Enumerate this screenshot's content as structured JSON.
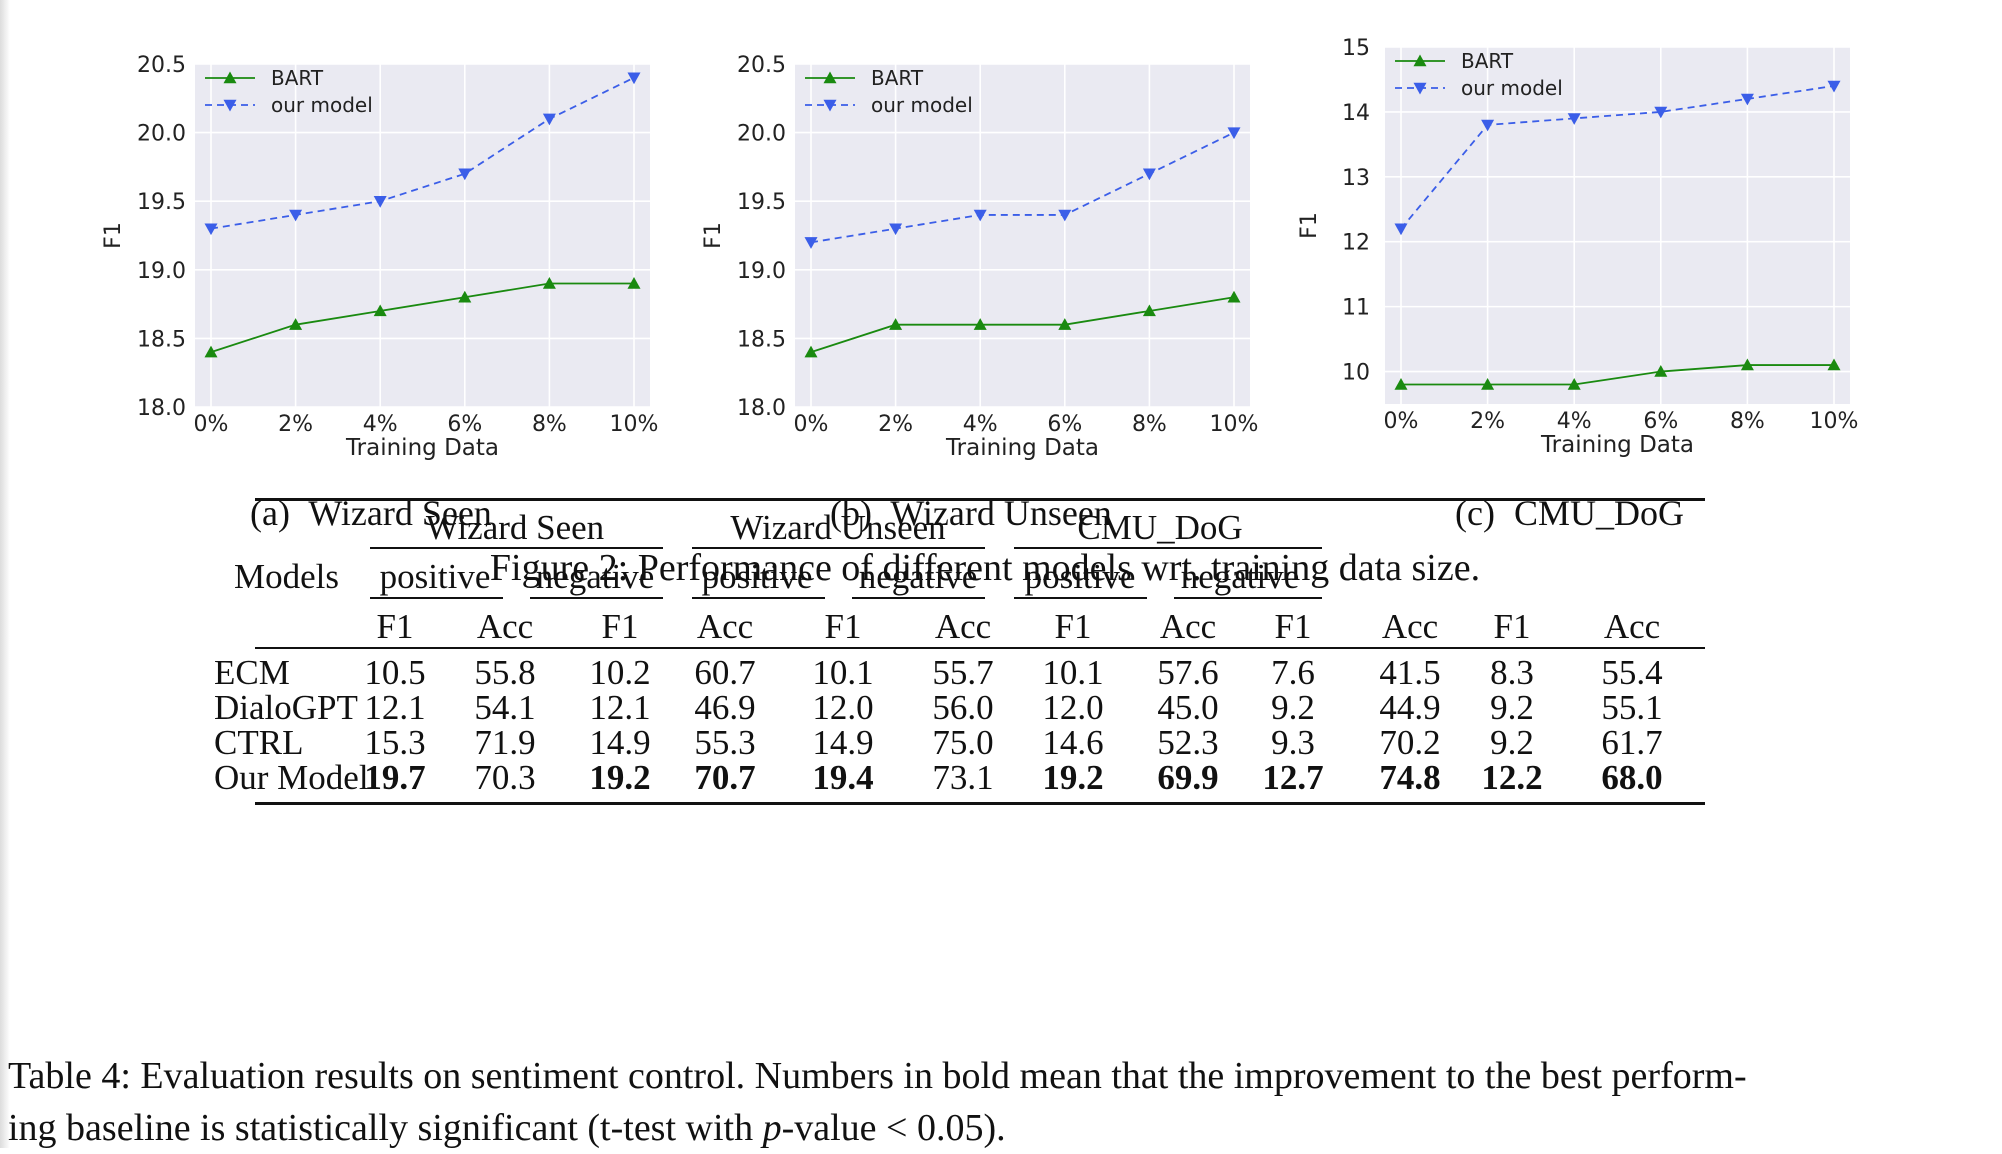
{
  "chart_data": [
    {
      "type": "line",
      "id": "a",
      "x": [
        "0%",
        "2%",
        "4%",
        "6%",
        "8%",
        "10%"
      ],
      "xlabel": "Training Data",
      "ylabel": "F1",
      "ylim": [
        18.0,
        20.5
      ],
      "yticks": [
        "18.0",
        "18.5",
        "19.0",
        "19.5",
        "20.0",
        "20.5"
      ],
      "grid": true,
      "legend": "top-left",
      "series": [
        {
          "name": "BART",
          "values": [
            18.4,
            18.6,
            18.7,
            18.8,
            18.9,
            18.9
          ],
          "color": "#1a8a10",
          "marker": "triangle-up",
          "dash": false
        },
        {
          "name": "our model",
          "values": [
            19.3,
            19.4,
            19.5,
            19.7,
            20.1,
            20.4
          ],
          "color": "#3b5ee8",
          "marker": "triangle-down",
          "dash": true
        }
      ]
    },
    {
      "type": "line",
      "id": "b",
      "x": [
        "0%",
        "2%",
        "4%",
        "6%",
        "8%",
        "10%"
      ],
      "xlabel": "Training Data",
      "ylabel": "F1",
      "ylim": [
        18.0,
        20.5
      ],
      "yticks": [
        "18.0",
        "18.5",
        "19.0",
        "19.5",
        "20.0",
        "20.5"
      ],
      "grid": true,
      "legend": "top-left",
      "series": [
        {
          "name": "BART",
          "values": [
            18.4,
            18.6,
            18.6,
            18.6,
            18.7,
            18.8
          ],
          "color": "#1a8a10",
          "marker": "triangle-up",
          "dash": false
        },
        {
          "name": "our model",
          "values": [
            19.2,
            19.3,
            19.4,
            19.4,
            19.7,
            20.0
          ],
          "color": "#3b5ee8",
          "marker": "triangle-down",
          "dash": true
        }
      ]
    },
    {
      "type": "line",
      "id": "c",
      "x": [
        "0%",
        "2%",
        "4%",
        "6%",
        "8%",
        "10%"
      ],
      "xlabel": "Training Data",
      "ylabel": "F1",
      "ylim": [
        9.5,
        15
      ],
      "yticks": [
        "10",
        "11",
        "12",
        "13",
        "14",
        "15"
      ],
      "ytick_values": [
        10,
        11,
        12,
        13,
        14,
        15
      ],
      "grid": true,
      "legend": "top-left",
      "series": [
        {
          "name": "BART",
          "values": [
            9.8,
            9.8,
            9.8,
            10.0,
            10.1,
            10.1
          ],
          "color": "#1a8a10",
          "marker": "triangle-up",
          "dash": false
        },
        {
          "name": "our model",
          "values": [
            12.2,
            13.8,
            13.9,
            14.0,
            14.2,
            14.4
          ],
          "color": "#3b5ee8",
          "marker": "triangle-down",
          "dash": true
        }
      ]
    }
  ],
  "subcaptions": [
    {
      "label": "(a)",
      "text": "Wizard Seen"
    },
    {
      "label": "(b)",
      "text": "Wizard Unseen"
    },
    {
      "label": "(c)",
      "text": "CMU_DoG"
    }
  ],
  "figure_caption": "Figure 2: Performance of different models wrt. training data size.",
  "table": {
    "models_header": "Models",
    "groups": [
      "Wizard Seen",
      "Wizard Unseen",
      "CMU_DoG"
    ],
    "polarities": [
      "positive",
      "negative"
    ],
    "metrics": [
      "F1",
      "Acc"
    ],
    "rows": [
      {
        "model": "ECM",
        "cells": [
          {
            "v": "10.5",
            "b": false
          },
          {
            "v": "55.8",
            "b": false
          },
          {
            "v": "10.2",
            "b": false
          },
          {
            "v": "60.7",
            "b": false
          },
          {
            "v": "10.1",
            "b": false
          },
          {
            "v": "55.7",
            "b": false
          },
          {
            "v": "10.1",
            "b": false
          },
          {
            "v": "57.6",
            "b": false
          },
          {
            "v": "7.6",
            "b": false
          },
          {
            "v": "41.5",
            "b": false
          },
          {
            "v": "8.3",
            "b": false
          },
          {
            "v": "55.4",
            "b": false
          }
        ]
      },
      {
        "model": "DialoGPT",
        "cells": [
          {
            "v": "12.1",
            "b": false
          },
          {
            "v": "54.1",
            "b": false
          },
          {
            "v": "12.1",
            "b": false
          },
          {
            "v": "46.9",
            "b": false
          },
          {
            "v": "12.0",
            "b": false
          },
          {
            "v": "56.0",
            "b": false
          },
          {
            "v": "12.0",
            "b": false
          },
          {
            "v": "45.0",
            "b": false
          },
          {
            "v": "9.2",
            "b": false
          },
          {
            "v": "44.9",
            "b": false
          },
          {
            "v": "9.2",
            "b": false
          },
          {
            "v": "55.1",
            "b": false
          }
        ]
      },
      {
        "model": "CTRL",
        "cells": [
          {
            "v": "15.3",
            "b": false
          },
          {
            "v": "71.9",
            "b": false
          },
          {
            "v": "14.9",
            "b": false
          },
          {
            "v": "55.3",
            "b": false
          },
          {
            "v": "14.9",
            "b": false
          },
          {
            "v": "75.0",
            "b": false
          },
          {
            "v": "14.6",
            "b": false
          },
          {
            "v": "52.3",
            "b": false
          },
          {
            "v": "9.3",
            "b": false
          },
          {
            "v": "70.2",
            "b": false
          },
          {
            "v": "9.2",
            "b": false
          },
          {
            "v": "61.7",
            "b": false
          }
        ]
      },
      {
        "model": "Our Model",
        "cells": [
          {
            "v": "19.7",
            "b": true
          },
          {
            "v": "70.3",
            "b": false
          },
          {
            "v": "19.2",
            "b": true
          },
          {
            "v": "70.7",
            "b": true
          },
          {
            "v": "19.4",
            "b": true
          },
          {
            "v": "73.1",
            "b": false
          },
          {
            "v": "19.2",
            "b": true
          },
          {
            "v": "69.9",
            "b": true
          },
          {
            "v": "12.7",
            "b": true
          },
          {
            "v": "74.8",
            "b": true
          },
          {
            "v": "12.2",
            "b": true
          },
          {
            "v": "68.0",
            "b": true
          }
        ]
      }
    ]
  },
  "table_caption": {
    "part1": "Table 4: Evaluation results on sentiment control. Numbers in bold mean that the improvement to the best perform-",
    "part2": "ing baseline is statistically significant (t-test with ",
    "italic": "p",
    "part3": "-value < 0.05)."
  }
}
